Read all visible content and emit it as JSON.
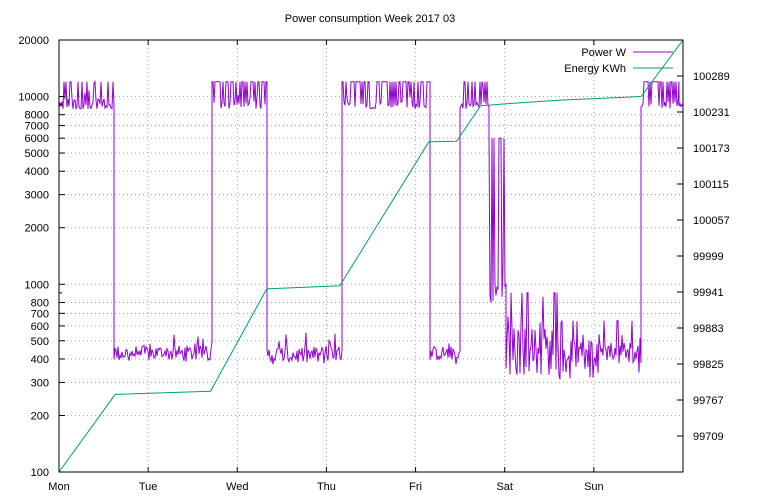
{
  "chart_data": {
    "type": "line",
    "title": "Power consumption Week 2017 03",
    "xlabel": "",
    "ylabel": "",
    "x_categories": [
      "Mon",
      "Tue",
      "Wed",
      "Thu",
      "Fri",
      "Sat",
      "Sun"
    ],
    "y_left": {
      "scale": "log",
      "range": [
        100,
        20000
      ],
      "tick_labels": [
        "100",
        "200",
        "300",
        "400",
        "500",
        "600",
        "700",
        "800",
        "1000",
        "2000",
        "3000",
        "4000",
        "5000",
        "6000",
        "7000",
        "8000",
        "10000",
        "20000"
      ]
    },
    "y_right": {
      "scale": "linear",
      "range": [
        99651,
        100347
      ],
      "tick_labels": [
        "99709",
        "99767",
        "99825",
        "99883",
        "99941",
        "99999",
        "100057",
        "100115",
        "100173",
        "100231",
        "100289"
      ]
    },
    "grid": true,
    "legend_position": "top-right",
    "series": [
      {
        "name": "Power W",
        "color": "#9400d3",
        "axis": "left",
        "segments": [
          {
            "from": 0.0,
            "to": 0.62,
            "level": 9000,
            "lo": 8600,
            "hi": 12000,
            "spike": 0.35
          },
          {
            "from": 0.62,
            "to": 1.72,
            "level": 430,
            "lo": 370,
            "hi": 540,
            "spike": 0
          },
          {
            "from": 1.72,
            "to": 2.33,
            "level": 9400,
            "lo": 8600,
            "hi": 12000,
            "spike": 0.9
          },
          {
            "from": 2.33,
            "to": 3.17,
            "level": 420,
            "lo": 370,
            "hi": 560,
            "spike": 0
          },
          {
            "from": 3.17,
            "to": 4.16,
            "level": 9400,
            "lo": 8600,
            "hi": 12000,
            "spike": 0.9
          },
          {
            "from": 4.16,
            "to": 4.5,
            "level": 430,
            "lo": 370,
            "hi": 520,
            "spike": 0
          },
          {
            "from": 4.5,
            "to": 4.82,
            "level": 9400,
            "lo": 8600,
            "hi": 12000,
            "spike": 0.9
          },
          {
            "from": 4.82,
            "to": 5.02,
            "level": 1000,
            "lo": 800,
            "hi": 6000,
            "spike": 0.7
          },
          {
            "from": 5.02,
            "to": 5.6,
            "level": 450,
            "lo": 330,
            "hi": 900,
            "spike": 0.25
          },
          {
            "from": 5.6,
            "to": 6.53,
            "level": 420,
            "lo": 310,
            "hi": 640,
            "spike": 0.15
          },
          {
            "from": 6.53,
            "to": 6.95,
            "level": 9400,
            "lo": 8600,
            "hi": 12000,
            "spike": 0.9
          },
          {
            "from": 6.95,
            "to": 7.0,
            "level": 9000,
            "lo": 8600,
            "hi": 9500,
            "spike": 0
          }
        ]
      },
      {
        "name": "Energy KWh",
        "color": "#009e73",
        "axis": "right",
        "points": [
          [
            0.0,
            99651
          ],
          [
            0.63,
            99776
          ],
          [
            1.7,
            99781
          ],
          [
            2.33,
            99946
          ],
          [
            3.15,
            99951
          ],
          [
            4.15,
            100183
          ],
          [
            4.46,
            100184
          ],
          [
            4.73,
            100241
          ],
          [
            5.0,
            100244
          ],
          [
            5.6,
            100250
          ],
          [
            6.53,
            100256
          ],
          [
            7.0,
            100347
          ]
        ]
      }
    ]
  }
}
